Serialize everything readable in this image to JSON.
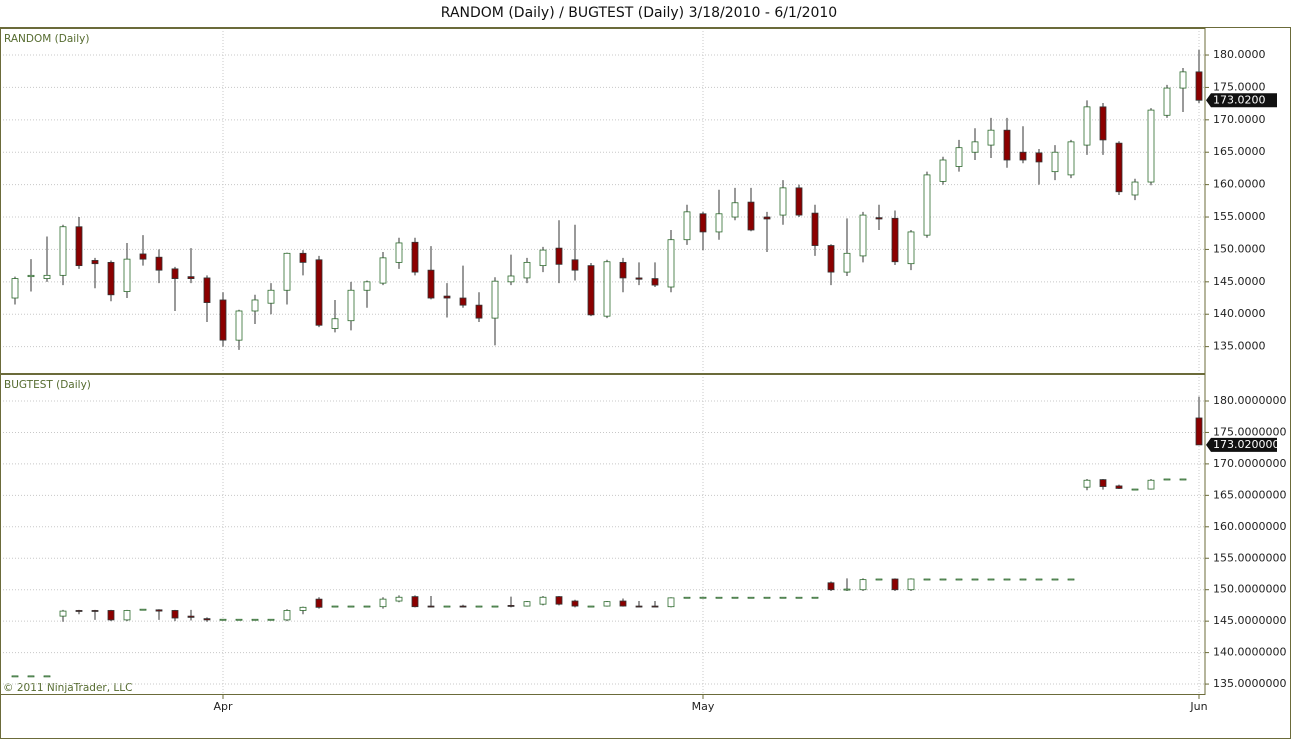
{
  "title": "RANDOM (Daily) / BUGTEST (Daily)  3/18/2010 - 6/1/2010",
  "footer": "© 2011 NinjaTrader, LLC",
  "chart_data": [
    {
      "type": "candlestick",
      "title": "RANDOM (Daily)",
      "up_color": "#ffffff",
      "up_border": "#2e6b2e",
      "down_color": "#8b0000",
      "wick_color": "#333333",
      "open": [
        142.5,
        145.8,
        145.5,
        146,
        153.5,
        148.3,
        148,
        143.5,
        149.3,
        148.8,
        147,
        145.8,
        145.6,
        142.2,
        136,
        140.5,
        141.7,
        143.7,
        149.4,
        148.4,
        137.8,
        139,
        143.7,
        144.8,
        148,
        151.1,
        146.8,
        142.8,
        142.5,
        141.4,
        139.4,
        145,
        145.6,
        147.5,
        150.2,
        148.4,
        147.5,
        139.7,
        148,
        145.6,
        145.5,
        144.2,
        151.5,
        155.5,
        152.7,
        155,
        157.3,
        155,
        155.3,
        159.5,
        155.6,
        150.6,
        146.5,
        149,
        154.9,
        154.8,
        147.8,
        152.2,
        160.5,
        162.8,
        165,
        166.1,
        168.4,
        165,
        164.9,
        162,
        161.5,
        166.1,
        172,
        166.4,
        158.4,
        160.4,
        170.7,
        174.9,
        177.4
      ],
      "high": [
        145.8,
        148.5,
        152,
        153.8,
        155,
        148.7,
        148.3,
        151,
        152.2,
        150,
        147.3,
        150.2,
        146,
        143.4,
        140.7,
        143,
        144.8,
        149.5,
        149.9,
        149,
        142.2,
        145,
        145.2,
        149.6,
        151.8,
        151.8,
        150.5,
        144.8,
        147.5,
        143.4,
        145.7,
        149.2,
        148.7,
        150.4,
        154.5,
        153.8,
        147.9,
        148.4,
        148.7,
        148,
        148,
        153,
        156.9,
        155.8,
        159.2,
        159.5,
        159.5,
        155.8,
        160.7,
        160,
        156.9,
        150.8,
        154.8,
        155.8,
        156.9,
        156,
        153,
        162,
        164.3,
        166.9,
        168.7,
        170.3,
        170.3,
        169,
        165.5,
        166.1,
        166.9,
        173,
        172.6,
        166.7,
        160.9,
        171.8,
        175.4,
        178,
        180.8
      ],
      "low": [
        141.5,
        143.5,
        145,
        144.5,
        147,
        144,
        142,
        142.5,
        147.5,
        144.8,
        140.5,
        144.8,
        138.8,
        135,
        134.5,
        138.5,
        140,
        141.5,
        146,
        138,
        137.2,
        137.5,
        141,
        144.5,
        147,
        146,
        142.3,
        139.5,
        141,
        138.8,
        135.2,
        144.5,
        144.8,
        146.5,
        144.8,
        145.2,
        139.7,
        139.4,
        143.4,
        144.5,
        144.2,
        143.4,
        150.7,
        149.9,
        151.5,
        154.5,
        152.8,
        149.6,
        153.8,
        155,
        149,
        144.5,
        145.9,
        148,
        153,
        147.6,
        146.8,
        151.8,
        160,
        162,
        163.8,
        164.1,
        162.6,
        163.3,
        160,
        160.7,
        161,
        164.6,
        164.6,
        158.4,
        157.6,
        159.9,
        170.3,
        171.2,
        172.6
      ],
      "close": [
        145.5,
        146,
        146,
        153.5,
        147.5,
        147.8,
        143,
        148.5,
        148.5,
        146.8,
        145.5,
        145.5,
        141.8,
        136,
        140.5,
        142.2,
        143.7,
        149.4,
        148,
        138.3,
        139.3,
        143.7,
        145,
        148.7,
        151,
        146.5,
        142.5,
        142.5,
        141.4,
        139.4,
        145.1,
        145.9,
        148,
        149.9,
        147.7,
        146.8,
        139.9,
        148.1,
        145.6,
        145.4,
        144.5,
        151.5,
        155.8,
        152.7,
        155.5,
        157.2,
        153,
        154.7,
        159.5,
        155.3,
        150.6,
        146.5,
        149.4,
        155.3,
        154.7,
        148.1,
        152.7,
        161.5,
        163.8,
        165.7,
        166.6,
        168.4,
        163.8,
        163.8,
        163.5,
        165,
        166.6,
        172,
        166.9,
        158.9,
        160.4,
        171.5,
        174.9,
        177.4,
        173.02
      ],
      "last_price": {
        "value": 173.02,
        "label": "173.0200"
      },
      "ylim": [
        130.93,
        184.17
      ],
      "yticks": [
        {
          "value": 135,
          "label": "135.0000"
        },
        {
          "value": 140,
          "label": "140.0000"
        },
        {
          "value": 145,
          "label": "145.0000"
        },
        {
          "value": 150,
          "label": "150.0000"
        },
        {
          "value": 155,
          "label": "155.0000"
        },
        {
          "value": 160,
          "label": "160.0000"
        },
        {
          "value": 165,
          "label": "165.0000"
        },
        {
          "value": 170,
          "label": "170.0000"
        },
        {
          "value": 175,
          "label": "175.0000"
        },
        {
          "value": 180,
          "label": "180.0000"
        }
      ],
      "grid": true
    },
    {
      "type": "candlestick",
      "title": "BUGTEST (Daily)",
      "up_color": "#ffffff",
      "up_border": "#2e6b2e",
      "down_color": "#8b0000",
      "wick_color": "#333333",
      "categories": [
        null,
        null,
        null,
        null,
        null,
        null,
        null,
        null,
        null,
        null,
        null,
        null,
        null,
        "Apr",
        null,
        null,
        null,
        null,
        null,
        null,
        null,
        null,
        null,
        null,
        null,
        null,
        null,
        null,
        null,
        null,
        null,
        null,
        null,
        null,
        null,
        null,
        null,
        null,
        null,
        null,
        null,
        null,
        null,
        "May",
        null,
        null,
        null,
        null,
        null,
        null,
        null,
        null,
        null,
        null,
        null,
        null,
        null,
        null,
        null,
        null,
        null,
        null,
        null,
        null,
        null,
        null,
        null,
        null,
        null,
        null,
        null,
        null,
        null,
        null,
        "Jun"
      ],
      "open": [
        136.3,
        136.3,
        136.3,
        145.8,
        146.7,
        146.7,
        146.7,
        145.2,
        146.9,
        146.8,
        146.7,
        145.8,
        145.4,
        145.3,
        145.3,
        145.3,
        145.3,
        145.2,
        146.7,
        148.5,
        147.4,
        147.4,
        147.4,
        147.3,
        148.2,
        148.9,
        147.4,
        147.4,
        147.4,
        147.4,
        147.4,
        147.5,
        147.4,
        147.7,
        148.9,
        148.2,
        147.4,
        147.4,
        148.2,
        147.4,
        147.4,
        147.3,
        148.8,
        148.8,
        148.8,
        148.8,
        148.8,
        148.8,
        148.8,
        148.8,
        148.8,
        151.1,
        150,
        150,
        151.7,
        151.7,
        150,
        151.7,
        151.7,
        151.7,
        151.7,
        151.7,
        151.7,
        151.7,
        151.7,
        151.7,
        151.7,
        166.3,
        167.5,
        166.5,
        166,
        166,
        167.6,
        167.6,
        177.3
      ],
      "high": [
        136.3,
        136.3,
        136.3,
        146.8,
        146.8,
        146.8,
        146.8,
        146.8,
        146.9,
        146.9,
        146.8,
        146.8,
        145.6,
        145.3,
        145.3,
        145.3,
        145.3,
        146.9,
        147.3,
        148.8,
        147.4,
        147.4,
        147.4,
        148.8,
        149.1,
        149.1,
        149,
        147.4,
        147.6,
        147.4,
        147.4,
        148.9,
        148.2,
        149,
        149,
        148.4,
        147.4,
        148.2,
        148.6,
        148.2,
        148.2,
        148.8,
        148.8,
        148.8,
        148.8,
        148.8,
        148.8,
        148.8,
        148.8,
        148.8,
        148.8,
        151.3,
        151.8,
        151.8,
        151.7,
        151.8,
        151.8,
        151.7,
        151.7,
        151.7,
        151.7,
        151.7,
        151.7,
        151.7,
        151.7,
        151.7,
        151.7,
        167.6,
        167.6,
        166.7,
        166,
        167.6,
        167.6,
        167.6,
        180.7
      ],
      "low": [
        136.3,
        136.3,
        136.3,
        144.9,
        146.1,
        145.2,
        145,
        145,
        146.9,
        145.2,
        145,
        145.1,
        144.9,
        145.3,
        145.3,
        145.3,
        145.3,
        145,
        146.1,
        147,
        147.4,
        147.4,
        147.4,
        147,
        148,
        147.2,
        147.2,
        147.4,
        147.2,
        147.4,
        147.4,
        147.2,
        147.3,
        147.5,
        147.5,
        147.2,
        147.4,
        147.3,
        147.3,
        147.3,
        147.3,
        147.2,
        148.8,
        148.8,
        148.8,
        148.8,
        148.8,
        148.8,
        148.8,
        148.8,
        148.8,
        149.8,
        149.8,
        149.8,
        151.7,
        149.8,
        149.8,
        151.7,
        151.7,
        151.7,
        151.7,
        151.7,
        151.7,
        151.7,
        151.7,
        151.7,
        151.7,
        165.8,
        165.9,
        166,
        166,
        165.9,
        167.6,
        167.6,
        173
      ],
      "close": [
        136.3,
        136.3,
        136.3,
        146.6,
        146.6,
        146.6,
        145.2,
        146.7,
        146.9,
        146.6,
        145.5,
        145.6,
        145.2,
        145.3,
        145.3,
        145.3,
        145.3,
        146.7,
        147.2,
        147.2,
        147.4,
        147.4,
        147.4,
        148.5,
        148.8,
        147.3,
        147.3,
        147.4,
        147.3,
        147.4,
        147.4,
        147.4,
        148.1,
        148.8,
        147.7,
        147.4,
        147.4,
        148.1,
        147.4,
        147.3,
        147.3,
        148.7,
        148.8,
        148.8,
        148.8,
        148.8,
        148.8,
        148.8,
        148.8,
        148.8,
        148.8,
        150,
        150.1,
        151.6,
        151.7,
        150,
        151.7,
        151.7,
        151.7,
        151.7,
        151.7,
        151.7,
        151.7,
        151.7,
        151.7,
        151.7,
        151.7,
        167.4,
        166.4,
        166.1,
        166,
        167.4,
        167.6,
        167.6,
        173.02
      ],
      "last_price": {
        "value": 173.02,
        "label": "173.0200000"
      },
      "ylim": [
        133.42,
        184.29
      ],
      "yticks": [
        {
          "value": 135,
          "label": "135.0000000"
        },
        {
          "value": 140,
          "label": "140.0000000"
        },
        {
          "value": 145,
          "label": "145.0000000"
        },
        {
          "value": 150,
          "label": "150.0000000"
        },
        {
          "value": 155,
          "label": "155.0000000"
        },
        {
          "value": 160,
          "label": "160.0000000"
        },
        {
          "value": 165,
          "label": "165.0000000"
        },
        {
          "value": 170,
          "label": "170.0000000"
        },
        {
          "value": 175,
          "label": "175.0000000"
        },
        {
          "value": 180,
          "label": "180.0000000"
        }
      ],
      "grid": true
    }
  ]
}
